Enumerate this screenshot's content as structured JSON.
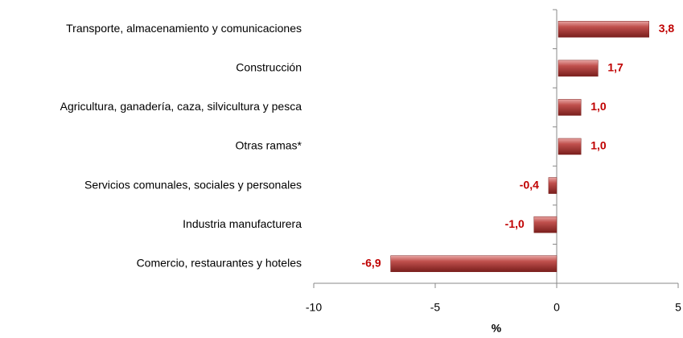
{
  "chart_data": {
    "type": "bar",
    "orientation": "horizontal",
    "categories": [
      "Transporte, almacenamiento y comunicaciones",
      "Construcción",
      "Agricultura, ganadería, caza, silvicultura y pesca",
      "Otras ramas*",
      "Servicios comunales, sociales y personales",
      "Industria manufacturera",
      "Comercio, restaurantes y hoteles"
    ],
    "values": [
      3.8,
      1.7,
      1.0,
      1.0,
      -0.4,
      -1.0,
      -6.9
    ],
    "value_labels": [
      "3,8",
      "1,7",
      "1,0",
      "1,0",
      "-0,4",
      "-1,0",
      "-6,9"
    ],
    "color": "#c0504d",
    "xlim": [
      -10,
      5
    ],
    "xticks": [
      -10,
      -5,
      0,
      5
    ],
    "xlabel": "%"
  }
}
